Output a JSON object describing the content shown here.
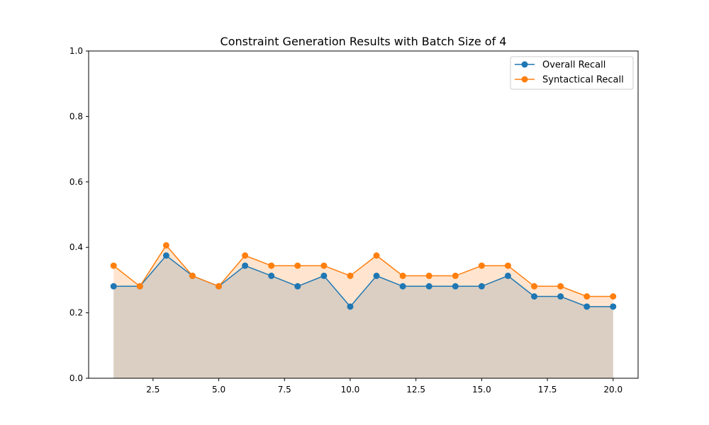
{
  "chart_data": {
    "type": "line",
    "title": "Constraint Generation Results with Batch Size of 4",
    "xlabel": "",
    "ylabel": "",
    "xlim": [
      0.05,
      20.95
    ],
    "ylim": [
      0,
      1
    ],
    "xticks": [
      2.5,
      5,
      7.5,
      10,
      12.5,
      15,
      17.5,
      20
    ],
    "xtick_labels": [
      "2.5",
      "5.0",
      "7.5",
      "10.0",
      "12.5",
      "15.0",
      "17.5",
      "20.0"
    ],
    "yticks": [
      0,
      0.2,
      0.4,
      0.6,
      0.8,
      1.0
    ],
    "ytick_labels": [
      "0.0",
      "0.2",
      "0.4",
      "0.6",
      "0.8",
      "1.0"
    ],
    "grid": false,
    "legend_position": "top-right",
    "x": [
      1,
      2,
      3,
      4,
      5,
      6,
      7,
      8,
      9,
      10,
      11,
      12,
      13,
      14,
      15,
      16,
      17,
      18,
      19,
      20
    ],
    "series": [
      {
        "name": "Overall Recall",
        "color": "#1f77b4",
        "fill": "area-to-zero",
        "values": [
          0.281,
          0.281,
          0.375,
          0.313,
          0.281,
          0.344,
          0.313,
          0.281,
          0.313,
          0.219,
          0.313,
          0.281,
          0.281,
          0.281,
          0.281,
          0.313,
          0.25,
          0.25,
          0.219,
          0.219
        ]
      },
      {
        "name": "Syntactical Recall",
        "color": "#ff7f0e",
        "fill": "area-to-zero",
        "values": [
          0.344,
          0.281,
          0.406,
          0.313,
          0.281,
          0.375,
          0.344,
          0.344,
          0.344,
          0.313,
          0.375,
          0.313,
          0.313,
          0.313,
          0.344,
          0.344,
          0.281,
          0.281,
          0.25,
          0.25
        ]
      }
    ]
  }
}
